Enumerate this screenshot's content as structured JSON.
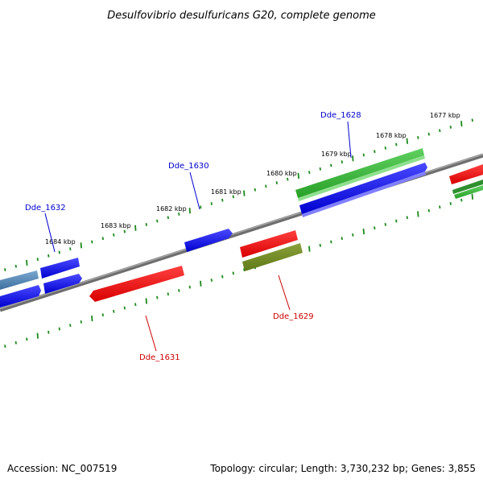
{
  "title": "Desulfovibrio desulfuricans G20, complete genome",
  "footer": {
    "accession": "Accession: NC_007519",
    "summary": "Topology: circular; Length: 3,730,232 bp; Genes: 3,855"
  },
  "colors": {
    "backbone": "#808080",
    "ticks": "#1a8a1a",
    "label_blue": "#0000cc",
    "label_red": "#cc0000"
  },
  "kbp_labels": [
    "1677 kbp",
    "1678 kbp",
    "1679 kbp",
    "1680 kbp",
    "1681 kbp",
    "1682 kbp",
    "1683 kbp",
    "1684 kbp"
  ],
  "gene_labels": {
    "dde_1628": "Dde_1628",
    "dde_1629": "Dde_1629",
    "dde_1630": "Dde_1630",
    "dde_1631": "Dde_1631",
    "dde_1632": "Dde_1632"
  }
}
